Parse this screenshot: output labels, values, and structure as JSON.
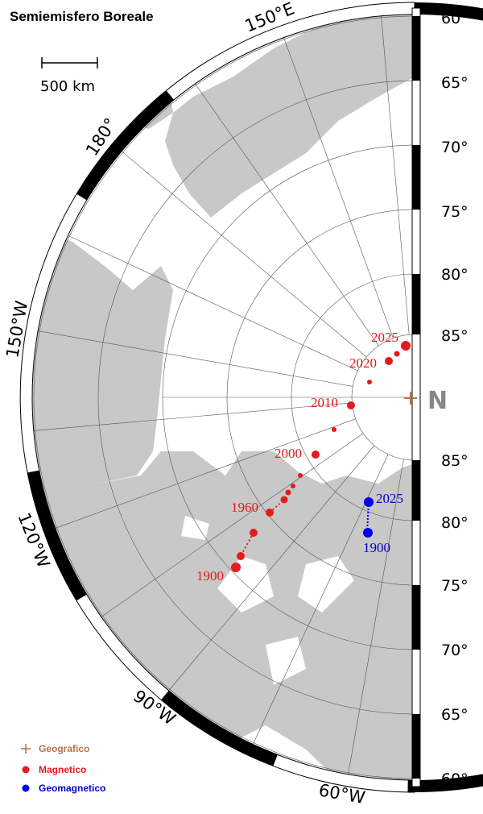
{
  "title": "Semiemisfero Boreale",
  "scale_bar": {
    "label": "500 km"
  },
  "longitude_labels": [
    "150°E",
    "180°",
    "150°W",
    "120°W",
    "90°W",
    "60°W"
  ],
  "latitude_labels_upper": [
    "60°",
    "65°",
    "70°",
    "75°",
    "80°",
    "85°"
  ],
  "latitude_labels_lower": [
    "85°",
    "80°",
    "75°",
    "70°",
    "65°",
    "60°"
  ],
  "pole_marker": "N",
  "magnetic_years": [
    "2025",
    "2020",
    "2010",
    "2000",
    "1960",
    "1900"
  ],
  "geomagnetic_years": [
    "2025",
    "1900"
  ],
  "legend": [
    "Geografico",
    "Magnetico",
    "Geomagnetico"
  ]
}
